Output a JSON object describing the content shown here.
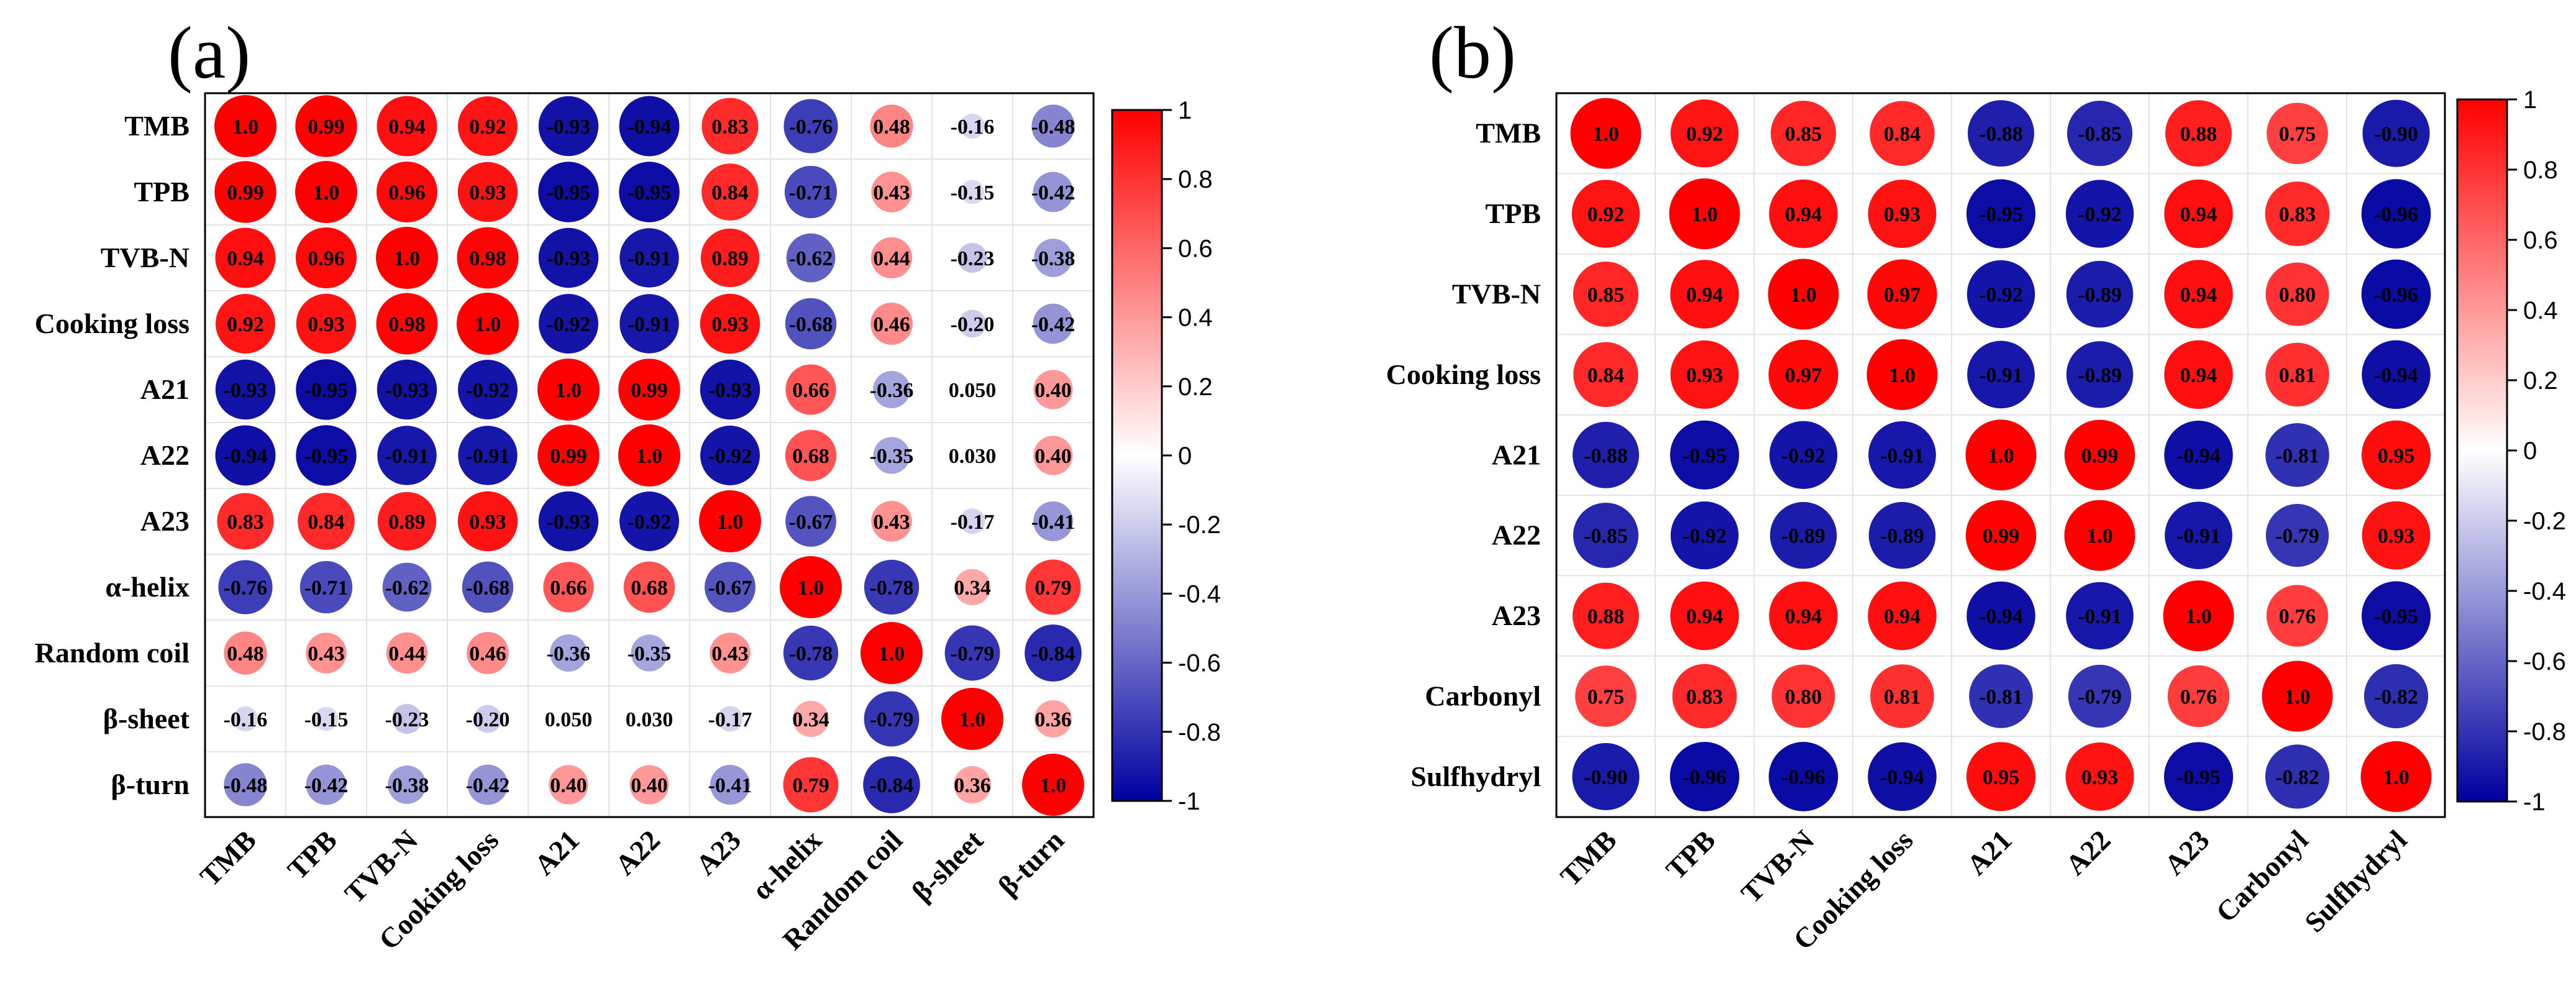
{
  "colors": {
    "negative": "#0000a0",
    "neutral": "#ffffff",
    "positive": "#ff0000"
  },
  "colorbar_ticks": [
    "1",
    "0.8",
    "0.6",
    "0.4",
    "0.2",
    "0",
    "-0.2",
    "-0.4",
    "-0.6",
    "-0.8",
    "-1"
  ],
  "chart_data": [
    {
      "panel": "(a)",
      "type": "heatmap",
      "title": "",
      "variables": [
        "TMB",
        "TPB",
        "TVB-N",
        "Cooking loss",
        "A21",
        "A22",
        "A23",
        "α-helix",
        "Random coil",
        "β-sheet",
        "β-turn"
      ],
      "range": [
        -1,
        1
      ],
      "matrix": [
        [
          "1.0",
          "0.99",
          "0.94",
          "0.92",
          "-0.93",
          "-0.94",
          "0.83",
          "-0.76",
          "0.48",
          "-0.16",
          "-0.48"
        ],
        [
          "0.99",
          "1.0",
          "0.96",
          "0.93",
          "-0.95",
          "-0.95",
          "0.84",
          "-0.71",
          "0.43",
          "-0.15",
          "-0.42"
        ],
        [
          "0.94",
          "0.96",
          "1.0",
          "0.98",
          "-0.93",
          "-0.91",
          "0.89",
          "-0.62",
          "0.44",
          "-0.23",
          "-0.38"
        ],
        [
          "0.92",
          "0.93",
          "0.98",
          "1.0",
          "-0.92",
          "-0.91",
          "0.93",
          "-0.68",
          "0.46",
          "-0.20",
          "-0.42"
        ],
        [
          "-0.93",
          "-0.95",
          "-0.93",
          "-0.92",
          "1.0",
          "0.99",
          "-0.93",
          "0.66",
          "-0.36",
          "0.050",
          "0.40"
        ],
        [
          "-0.94",
          "-0.95",
          "-0.91",
          "-0.91",
          "0.99",
          "1.0",
          "-0.92",
          "0.68",
          "-0.35",
          "0.030",
          "0.40"
        ],
        [
          "0.83",
          "0.84",
          "0.89",
          "0.93",
          "-0.93",
          "-0.92",
          "1.0",
          "-0.67",
          "0.43",
          "-0.17",
          "-0.41"
        ],
        [
          "-0.76",
          "-0.71",
          "-0.62",
          "-0.68",
          "0.66",
          "0.68",
          "-0.67",
          "1.0",
          "-0.78",
          "0.34",
          "0.79"
        ],
        [
          "0.48",
          "0.43",
          "0.44",
          "0.46",
          "-0.36",
          "-0.35",
          "0.43",
          "-0.78",
          "1.0",
          "-0.79",
          "-0.84"
        ],
        [
          "-0.16",
          "-0.15",
          "-0.23",
          "-0.20",
          "0.050",
          "0.030",
          "-0.17",
          "0.34",
          "-0.79",
          "1.0",
          "0.36"
        ],
        [
          "-0.48",
          "-0.42",
          "-0.38",
          "-0.42",
          "0.40",
          "0.40",
          "-0.41",
          "0.79",
          "-0.84",
          "0.36",
          "1.0"
        ]
      ]
    },
    {
      "panel": "(b)",
      "type": "heatmap",
      "title": "",
      "variables": [
        "TMB",
        "TPB",
        "TVB-N",
        "Cooking loss",
        "A21",
        "A22",
        "A23",
        "Carbonyl",
        "Sulfhydryl"
      ],
      "range": [
        -1,
        1
      ],
      "matrix": [
        [
          "1.0",
          "0.92",
          "0.85",
          "0.84",
          "-0.88",
          "-0.85",
          "0.88",
          "0.75",
          "-0.90"
        ],
        [
          "0.92",
          "1.0",
          "0.94",
          "0.93",
          "-0.95",
          "-0.92",
          "0.94",
          "0.83",
          "-0.96"
        ],
        [
          "0.85",
          "0.94",
          "1.0",
          "0.97",
          "-0.92",
          "-0.89",
          "0.94",
          "0.80",
          "-0.96"
        ],
        [
          "0.84",
          "0.93",
          "0.97",
          "1.0",
          "-0.91",
          "-0.89",
          "0.94",
          "0.81",
          "-0.94"
        ],
        [
          "-0.88",
          "-0.95",
          "-0.92",
          "-0.91",
          "1.0",
          "0.99",
          "-0.94",
          "-0.81",
          "0.95"
        ],
        [
          "-0.85",
          "-0.92",
          "-0.89",
          "-0.89",
          "0.99",
          "1.0",
          "-0.91",
          "-0.79",
          "0.93"
        ],
        [
          "0.88",
          "0.94",
          "0.94",
          "0.94",
          "-0.94",
          "-0.91",
          "1.0",
          "0.76",
          "-0.95"
        ],
        [
          "0.75",
          "0.83",
          "0.80",
          "0.81",
          "-0.81",
          "-0.79",
          "0.76",
          "1.0",
          "-0.82"
        ],
        [
          "-0.90",
          "-0.96",
          "-0.96",
          "-0.94",
          "0.95",
          "0.93",
          "-0.95",
          "-0.82",
          "1.0"
        ]
      ]
    }
  ]
}
